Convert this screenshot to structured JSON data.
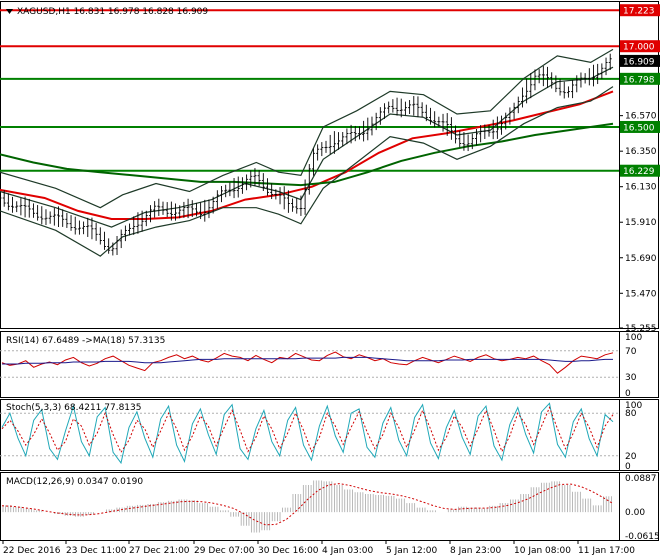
{
  "chart_data": {
    "type": "line",
    "title": "XAGUSD,H1  16.831 16.978 16.828 16.909",
    "symbol": "XAGUSD,H1",
    "ohlc": {
      "open": 16.831,
      "high": 16.978,
      "low": 16.828,
      "close": 16.909
    },
    "x_tick_labels": [
      "22 Dec 2016",
      "23 Dec 11:00",
      "27 Dec 21:00",
      "29 Dec 07:00",
      "30 Dec 16:00",
      "4 Jan 03:00",
      "5 Jan 12:00",
      "8 Jan 23:00",
      "10 Jan 08:00",
      "11 Jan 17:00"
    ],
    "main_panel": {
      "ylim": [
        15.255,
        17.28
      ],
      "y_tick_labels": [
        "17.223",
        "17.000",
        "16.909",
        "16.798",
        "16.570",
        "16.500",
        "16.350",
        "16.229",
        "16.130",
        "15.910",
        "15.690",
        "15.470",
        "15.255"
      ],
      "plain_ticks": [
        16.57,
        16.35,
        16.13,
        15.91,
        15.69,
        15.47,
        15.255
      ],
      "horizontal_levels": [
        {
          "value": 17.223,
          "label": "17.223",
          "color": "#e00000"
        },
        {
          "value": 17.0,
          "label": "17.000",
          "color": "#e00000"
        },
        {
          "value": 16.798,
          "label": "16.798",
          "color": "#008000"
        },
        {
          "value": 16.5,
          "label": "16.500",
          "color": "#008000"
        },
        {
          "value": 16.229,
          "label": "16.229",
          "color": "#008000"
        }
      ],
      "current_price": {
        "value": 16.909,
        "label": "16.909"
      },
      "price_path": [
        [
          0,
          16.06
        ],
        [
          4,
          15.99
        ],
        [
          8,
          15.95
        ],
        [
          12,
          15.91
        ],
        [
          16,
          15.86
        ],
        [
          18,
          15.81
        ],
        [
          20,
          15.74
        ],
        [
          24,
          15.9
        ],
        [
          28,
          15.99
        ],
        [
          32,
          15.98
        ],
        [
          36,
          15.98
        ],
        [
          38,
          16.02
        ],
        [
          40,
          16.09
        ],
        [
          42,
          16.13
        ],
        [
          44,
          16.16
        ],
        [
          46,
          16.18
        ],
        [
          48,
          16.12
        ],
        [
          50,
          16.07
        ],
        [
          52,
          16.0
        ],
        [
          54,
          16.02
        ],
        [
          56,
          16.31
        ],
        [
          60,
          16.42
        ],
        [
          64,
          16.45
        ],
        [
          68,
          16.56
        ],
        [
          70,
          16.63
        ],
        [
          74,
          16.62
        ],
        [
          78,
          16.55
        ],
        [
          80,
          16.5
        ],
        [
          82,
          16.42
        ],
        [
          84,
          16.41
        ],
        [
          88,
          16.48
        ],
        [
          92,
          16.58
        ],
        [
          94,
          16.72
        ],
        [
          96,
          16.82
        ],
        [
          98,
          16.79
        ],
        [
          100,
          16.75
        ],
        [
          102,
          16.72
        ],
        [
          104,
          16.78
        ],
        [
          108,
          16.86
        ],
        [
          110,
          16.91
        ]
      ],
      "series": [
        {
          "name": "",
          "color": "#e00000",
          "points": [
            [
              0,
              16.11
            ],
            [
              8,
              16.06
            ],
            [
              14,
              15.98
            ],
            [
              20,
              15.93
            ],
            [
              26,
              15.93
            ],
            [
              32,
              15.94
            ],
            [
              38,
              15.98
            ],
            [
              44,
              16.05
            ],
            [
              50,
              16.08
            ],
            [
              56,
              16.13
            ],
            [
              62,
              16.22
            ],
            [
              68,
              16.34
            ],
            [
              74,
              16.43
            ],
            [
              80,
              16.46
            ],
            [
              86,
              16.5
            ],
            [
              92,
              16.54
            ],
            [
              98,
              16.59
            ],
            [
              104,
              16.64
            ],
            [
              110,
              16.72
            ]
          ]
        },
        {
          "name": "",
          "color": "#006400",
          "points": [
            [
              0,
              16.33
            ],
            [
              6,
              16.28
            ],
            [
              12,
              16.24
            ],
            [
              18,
              16.22
            ],
            [
              24,
              16.2
            ],
            [
              30,
              16.18
            ],
            [
              36,
              16.16
            ],
            [
              42,
              16.16
            ],
            [
              48,
              16.15
            ],
            [
              54,
              16.14
            ],
            [
              60,
              16.16
            ],
            [
              66,
              16.22
            ],
            [
              72,
              16.29
            ],
            [
              78,
              16.34
            ],
            [
              84,
              16.38
            ],
            [
              90,
              16.41
            ],
            [
              96,
              16.45
            ],
            [
              102,
              16.48
            ],
            [
              110,
              16.52
            ]
          ]
        },
        {
          "name": "",
          "color": "#1e3a28",
          "points": [
            [
              0,
              16.1
            ],
            [
              10,
              16.0
            ],
            [
              20,
              15.88
            ],
            [
              26,
              15.97
            ],
            [
              32,
              16.0
            ],
            [
              38,
              16.05
            ],
            [
              44,
              16.15
            ],
            [
              50,
              16.1
            ],
            [
              54,
              16.05
            ],
            [
              58,
              16.3
            ],
            [
              64,
              16.44
            ],
            [
              70,
              16.58
            ],
            [
              76,
              16.56
            ],
            [
              82,
              16.45
            ],
            [
              88,
              16.48
            ],
            [
              94,
              16.66
            ],
            [
              100,
              16.78
            ],
            [
              106,
              16.8
            ],
            [
              110,
              16.87
            ]
          ]
        },
        {
          "name": "",
          "color": "#1e3a28",
          "points": [
            [
              0,
              16.22
            ],
            [
              10,
              16.12
            ],
            [
              18,
              16.0
            ],
            [
              22,
              16.08
            ],
            [
              28,
              16.15
            ],
            [
              34,
              16.1
            ],
            [
              40,
              16.2
            ],
            [
              46,
              16.28
            ],
            [
              50,
              16.22
            ],
            [
              54,
              16.2
            ],
            [
              58,
              16.5
            ],
            [
              64,
              16.6
            ],
            [
              70,
              16.72
            ],
            [
              76,
              16.7
            ],
            [
              82,
              16.58
            ],
            [
              88,
              16.6
            ],
            [
              94,
              16.8
            ],
            [
              100,
              16.94
            ],
            [
              106,
              16.9
            ],
            [
              110,
              16.98
            ]
          ]
        },
        {
          "name": "",
          "color": "#1e3a28",
          "points": [
            [
              0,
              15.98
            ],
            [
              10,
              15.86
            ],
            [
              18,
              15.7
            ],
            [
              22,
              15.82
            ],
            [
              28,
              15.88
            ],
            [
              34,
              15.92
            ],
            [
              40,
              16.0
            ],
            [
              46,
              16.0
            ],
            [
              50,
              15.96
            ],
            [
              54,
              15.9
            ],
            [
              58,
              16.12
            ],
            [
              64,
              16.28
            ],
            [
              70,
              16.44
            ],
            [
              76,
              16.4
            ],
            [
              82,
              16.3
            ],
            [
              88,
              16.38
            ],
            [
              94,
              16.52
            ],
            [
              100,
              16.62
            ],
            [
              106,
              16.66
            ],
            [
              110,
              16.75
            ]
          ]
        }
      ]
    },
    "rsi_panel": {
      "header": "RSI(14) 67.6489  ->MA(18) 57.3135",
      "ylim": [
        0,
        100
      ],
      "y_tick_labels": [
        "100",
        "70",
        "30",
        "0"
      ],
      "levels": [
        70,
        30
      ],
      "rsi": [
        52,
        48,
        50,
        55,
        45,
        50,
        53,
        49,
        56,
        60,
        52,
        47,
        51,
        58,
        62,
        55,
        48,
        44,
        40,
        52,
        55,
        60,
        64,
        58,
        62,
        56,
        53,
        59,
        66,
        62,
        60,
        55,
        63,
        57,
        52,
        60,
        58,
        66,
        61,
        56,
        55,
        63,
        68,
        61,
        58,
        64,
        60,
        55,
        58,
        52,
        50,
        49,
        55,
        60,
        56,
        52,
        57,
        62,
        58,
        54,
        60,
        64,
        58,
        55,
        57,
        60,
        58,
        62,
        55,
        49,
        36,
        45,
        55,
        62,
        60,
        58,
        64,
        67
      ],
      "ma": [
        50,
        50,
        50,
        51,
        51,
        51,
        52,
        52,
        52,
        53,
        53,
        53,
        53,
        54,
        54,
        54,
        54,
        53,
        52,
        52,
        52,
        53,
        54,
        55,
        56,
        57,
        57,
        57,
        58,
        58,
        58,
        58,
        58,
        58,
        58,
        58,
        58,
        58,
        59,
        59,
        59,
        59,
        59,
        60,
        60,
        60,
        60,
        59,
        58,
        57,
        56,
        55,
        55,
        55,
        55,
        55,
        56,
        56,
        56,
        57,
        57,
        57,
        57,
        57,
        57,
        57,
        57,
        57,
        57,
        56,
        55,
        54,
        54,
        55,
        55,
        56,
        57,
        57
      ]
    },
    "stoch_panel": {
      "header": "Stoch(5,3,3) 68.4211 77.8135",
      "ylim": [
        0,
        100
      ],
      "y_tick_labels": [
        "100",
        "80",
        "20",
        "0"
      ],
      "levels": [
        80,
        20
      ],
      "main": [
        60,
        80,
        45,
        20,
        70,
        85,
        30,
        15,
        55,
        90,
        40,
        20,
        75,
        88,
        25,
        10,
        60,
        82,
        45,
        18,
        72,
        90,
        35,
        12,
        65,
        86,
        50,
        22,
        78,
        92,
        30,
        15,
        58,
        84,
        40,
        20,
        70,
        88,
        35,
        14,
        62,
        90,
        48,
        25,
        80,
        86,
        32,
        18,
        66,
        88,
        42,
        20,
        74,
        92,
        38,
        16,
        60,
        84,
        46,
        22,
        76,
        90,
        34,
        14,
        64,
        88,
        50,
        24,
        82,
        94,
        36,
        18,
        68,
        86,
        44,
        20,
        78,
        68
      ],
      "signal": [
        58,
        70,
        55,
        35,
        50,
        72,
        52,
        28,
        40,
        72,
        62,
        35,
        52,
        80,
        50,
        25,
        42,
        70,
        58,
        32,
        55,
        80,
        58,
        28,
        48,
        76,
        62,
        34,
        60,
        84,
        56,
        26,
        46,
        76,
        58,
        30,
        52,
        80,
        56,
        26,
        46,
        80,
        62,
        36,
        60,
        82,
        54,
        30,
        50,
        80,
        60,
        32,
        56,
        84,
        58,
        28,
        46,
        76,
        60,
        34,
        58,
        84,
        56,
        26,
        48,
        80,
        64,
        36,
        62,
        88,
        58,
        30,
        52,
        80,
        60,
        32,
        62,
        78
      ]
    },
    "macd_panel": {
      "header": "MACD(12,26,9) 0.0347 0.0190",
      "ylim": [
        -0.0615,
        0.0887
      ],
      "y_tick_labels": [
        "0.0887",
        "0.00",
        "-0.0615"
      ],
      "histogram": [
        0.015,
        0.012,
        0.008,
        0.004,
        0.0,
        -0.004,
        -0.008,
        -0.01,
        -0.006,
        0.0,
        0.006,
        0.01,
        0.014,
        0.016,
        0.018,
        0.022,
        0.025,
        0.028,
        0.026,
        0.02,
        0.012,
        0.004,
        -0.01,
        -0.03,
        -0.045,
        -0.04,
        -0.02,
        0.01,
        0.04,
        0.06,
        0.07,
        0.068,
        0.06,
        0.05,
        0.044,
        0.04,
        0.038,
        0.036,
        0.03,
        0.02,
        0.01,
        0.004,
        0.0,
        0.006,
        0.012,
        0.01,
        0.008,
        0.014,
        0.02,
        0.028,
        0.04,
        0.055,
        0.065,
        0.068,
        0.06,
        0.045,
        0.03,
        0.015,
        0.035
      ],
      "signal": [
        0.014,
        0.013,
        0.01,
        0.007,
        0.003,
        -0.001,
        -0.004,
        -0.006,
        -0.006,
        -0.004,
        0.0,
        0.004,
        0.008,
        0.011,
        0.014,
        0.017,
        0.02,
        0.023,
        0.024,
        0.023,
        0.02,
        0.015,
        0.008,
        -0.004,
        -0.018,
        -0.028,
        -0.027,
        -0.016,
        0.004,
        0.028,
        0.048,
        0.06,
        0.063,
        0.059,
        0.053,
        0.047,
        0.043,
        0.04,
        0.036,
        0.03,
        0.022,
        0.014,
        0.008,
        0.006,
        0.008,
        0.009,
        0.009,
        0.011,
        0.015,
        0.021,
        0.03,
        0.042,
        0.053,
        0.061,
        0.062,
        0.056,
        0.046,
        0.033,
        0.019
      ]
    }
  }
}
